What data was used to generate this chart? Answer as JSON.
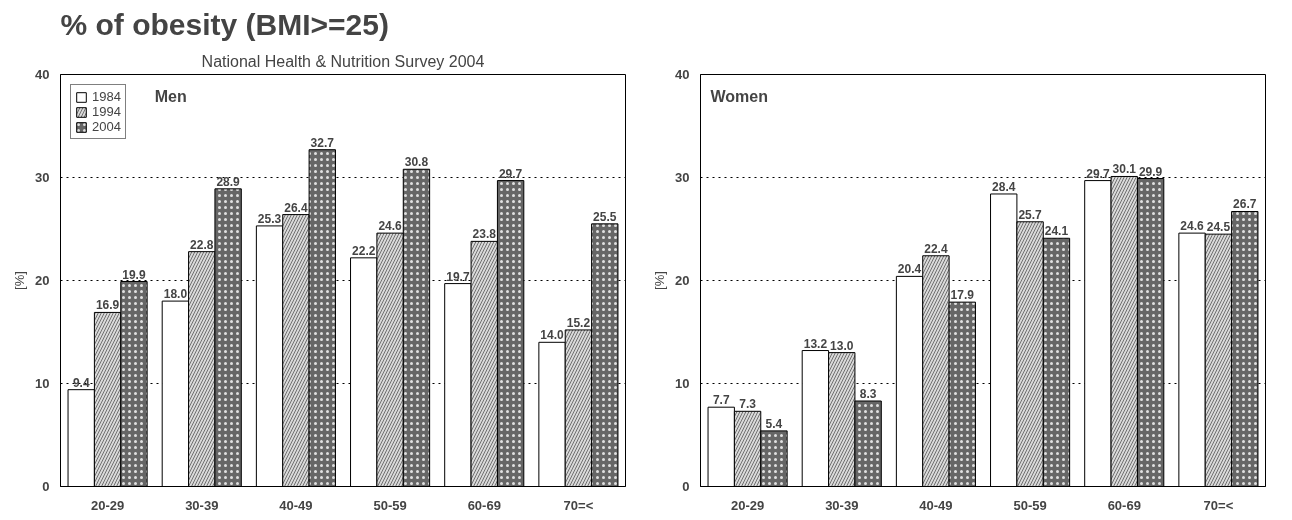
{
  "chart_data": [
    {
      "type": "bar",
      "title": "% of obesity (BMI>=25)",
      "subtitle": "National Health & Nutrition Survey 2004",
      "annotations": [
        "Men"
      ],
      "ylabel": "[%]",
      "categories": [
        "20-29",
        "30-39",
        "40-49",
        "50-59",
        "60-69",
        "70=<"
      ],
      "series": [
        {
          "name": "1984",
          "color": "#ffffff",
          "values": [
            9.4,
            18.0,
            25.3,
            22.2,
            19.7,
            14.0
          ],
          "value_labels": [
            "9.4",
            "18.0",
            "25.3",
            "22.2",
            "19.7",
            "14.0"
          ]
        },
        {
          "name": "1994",
          "color": "#d9d9d9",
          "values": [
            16.9,
            22.8,
            26.4,
            24.6,
            23.8,
            15.2
          ]
        },
        {
          "name": "2004",
          "color": "#666666",
          "values": [
            19.9,
            28.9,
            32.7,
            30.8,
            29.7,
            25.5
          ]
        }
      ],
      "ylim": [
        0,
        40
      ],
      "yticks": [
        0,
        10,
        20,
        30,
        40
      ],
      "grid": "y",
      "legend": "top left",
      "data_labels": true
    },
    {
      "type": "bar",
      "annotations": [
        "Women"
      ],
      "ylabel": "[%]",
      "categories": [
        "20-29",
        "30-39",
        "40-49",
        "50-59",
        "60-69",
        "70=<"
      ],
      "series": [
        {
          "color": "#ffffff",
          "values": [
            7.7,
            13.2,
            20.4,
            28.4,
            29.7,
            24.6
          ]
        },
        {
          "color": "#d9d9d9",
          "values": [
            7.3,
            13.0,
            22.4,
            25.7,
            30.1,
            24.5
          ],
          "value_labels": [
            "7.3",
            "13.0",
            "22.4",
            "25.7",
            "30.1",
            "24.5"
          ]
        },
        {
          "color": "#666666",
          "values": [
            5.4,
            8.3,
            17.9,
            24.1,
            29.9,
            26.7
          ]
        }
      ],
      "ylim": [
        0,
        40
      ],
      "yticks": [
        0,
        10,
        20,
        30,
        40
      ],
      "grid": "y",
      "data_labels": true
    }
  ]
}
